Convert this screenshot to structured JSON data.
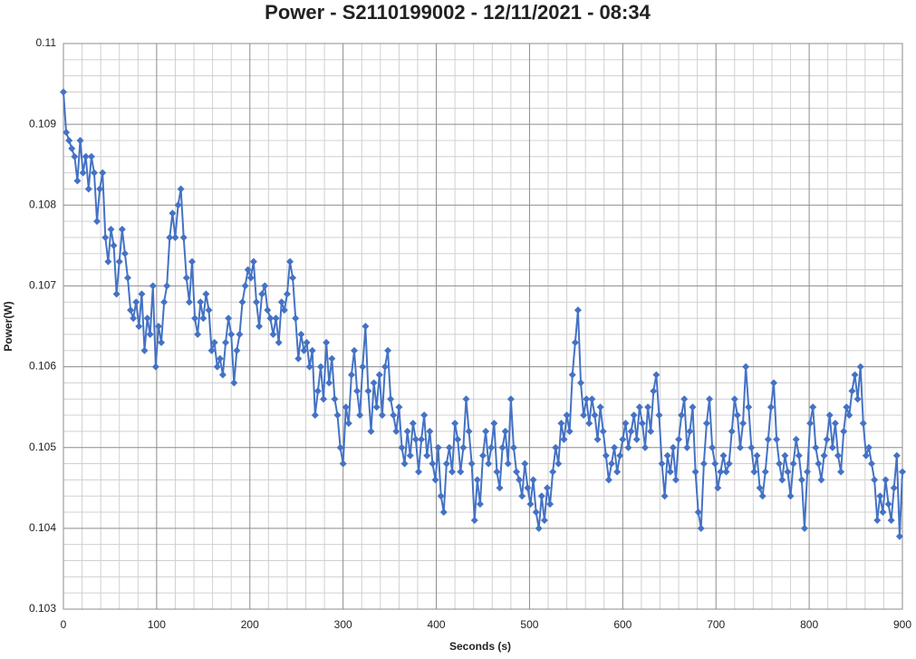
{
  "chart_data": {
    "type": "line",
    "title": "Power - S2110199002 - 12/11/2021 - 08:34",
    "x_label": "Seconds (s)",
    "y_label": "Power(W)",
    "xlim": [
      0,
      900
    ],
    "xticks": [
      0,
      100,
      200,
      300,
      400,
      500,
      600,
      700,
      800,
      900
    ],
    "ylim": [
      0.103,
      0.11
    ],
    "yticks": [
      0.103,
      0.104,
      0.105,
      0.106,
      0.107,
      0.108,
      0.109,
      0.11
    ],
    "grid": true,
    "marker": "diamond",
    "x": [
      0,
      3,
      6,
      9,
      12,
      15,
      18,
      21,
      24,
      27,
      30,
      33,
      36,
      39,
      42,
      45,
      48,
      51,
      54,
      57,
      60,
      63,
      66,
      69,
      72,
      75,
      78,
      81,
      84,
      87,
      90,
      93,
      96,
      99,
      102,
      105,
      108,
      111,
      114,
      117,
      120,
      123,
      126,
      129,
      132,
      135,
      138,
      141,
      144,
      147,
      150,
      153,
      156,
      159,
      162,
      165,
      168,
      171,
      174,
      177,
      180,
      183,
      186,
      189,
      192,
      195,
      198,
      201,
      204,
      207,
      210,
      213,
      216,
      219,
      222,
      225,
      228,
      231,
      234,
      237,
      240,
      243,
      246,
      249,
      252,
      255,
      258,
      261,
      264,
      267,
      270,
      273,
      276,
      279,
      282,
      285,
      288,
      291,
      294,
      297,
      300,
      303,
      306,
      309,
      312,
      315,
      318,
      321,
      324,
      327,
      330,
      333,
      336,
      339,
      342,
      345,
      348,
      351,
      354,
      357,
      360,
      363,
      366,
      369,
      372,
      375,
      378,
      381,
      384,
      387,
      390,
      393,
      396,
      399,
      402,
      405,
      408,
      411,
      414,
      417,
      420,
      423,
      426,
      429,
      432,
      435,
      438,
      441,
      444,
      447,
      450,
      453,
      456,
      459,
      462,
      465,
      468,
      471,
      474,
      477,
      480,
      483,
      486,
      489,
      492,
      495,
      498,
      501,
      504,
      507,
      510,
      513,
      516,
      519,
      522,
      525,
      528,
      531,
      534,
      537,
      540,
      543,
      546,
      549,
      552,
      555,
      558,
      561,
      564,
      567,
      570,
      573,
      576,
      579,
      582,
      585,
      588,
      591,
      594,
      597,
      600,
      603,
      606,
      609,
      612,
      615,
      618,
      621,
      624,
      627,
      630,
      633,
      636,
      639,
      642,
      645,
      648,
      651,
      654,
      657,
      660,
      663,
      666,
      669,
      672,
      675,
      678,
      681,
      684,
      687,
      690,
      693,
      696,
      699,
      702,
      705,
      708,
      711,
      714,
      717,
      720,
      723,
      726,
      729,
      732,
      735,
      738,
      741,
      744,
      747,
      750,
      753,
      756,
      759,
      762,
      765,
      768,
      771,
      774,
      777,
      780,
      783,
      786,
      789,
      792,
      795,
      798,
      801,
      804,
      807,
      810,
      813,
      816,
      819,
      822,
      825,
      828,
      831,
      834,
      837,
      840,
      843,
      846,
      849,
      852,
      855,
      858,
      861,
      864,
      867,
      870,
      873,
      876,
      879,
      882,
      885,
      888,
      891,
      894,
      897,
      900
    ],
    "series": [
      {
        "name": "Power",
        "color": "#4472c4",
        "values": [
          0.1094,
          0.1089,
          0.1088,
          0.1087,
          0.1086,
          0.1083,
          0.1088,
          0.1084,
          0.1086,
          0.1082,
          0.1086,
          0.1084,
          0.1078,
          0.1082,
          0.1084,
          0.1076,
          0.1073,
          0.1077,
          0.1075,
          0.1069,
          0.1073,
          0.1077,
          0.1074,
          0.1071,
          0.1067,
          0.1066,
          0.1068,
          0.1065,
          0.1069,
          0.1062,
          0.1066,
          0.1064,
          0.107,
          0.106,
          0.1065,
          0.1063,
          0.1068,
          0.107,
          0.1076,
          0.1079,
          0.1076,
          0.108,
          0.1082,
          0.1076,
          0.1071,
          0.1068,
          0.1073,
          0.1066,
          0.1064,
          0.1068,
          0.1066,
          0.1069,
          0.1067,
          0.1062,
          0.1063,
          0.106,
          0.1061,
          0.1059,
          0.1063,
          0.1066,
          0.1064,
          0.1058,
          0.1062,
          0.1064,
          0.1068,
          0.107,
          0.1072,
          0.1071,
          0.1073,
          0.1068,
          0.1065,
          0.1069,
          0.107,
          0.1067,
          0.1066,
          0.1064,
          0.1066,
          0.1063,
          0.1068,
          0.1067,
          0.1069,
          0.1073,
          0.1071,
          0.1066,
          0.1061,
          0.1064,
          0.1062,
          0.1063,
          0.106,
          0.1062,
          0.1054,
          0.1057,
          0.106,
          0.1056,
          0.1063,
          0.1058,
          0.1061,
          0.1056,
          0.1054,
          0.105,
          0.1048,
          0.1055,
          0.1053,
          0.1059,
          0.1062,
          0.1057,
          0.1054,
          0.106,
          0.1065,
          0.1057,
          0.1052,
          0.1058,
          0.1055,
          0.1059,
          0.1054,
          0.106,
          0.1062,
          0.1056,
          0.1054,
          0.1052,
          0.1055,
          0.105,
          0.1048,
          0.1052,
          0.1049,
          0.1053,
          0.1051,
          0.1047,
          0.1051,
          0.1054,
          0.1049,
          0.1052,
          0.1048,
          0.1046,
          0.105,
          0.1044,
          0.1042,
          0.1048,
          0.105,
          0.1047,
          0.1053,
          0.1051,
          0.1047,
          0.105,
          0.1056,
          0.1052,
          0.1048,
          0.1041,
          0.1046,
          0.1043,
          0.1049,
          0.1052,
          0.1048,
          0.105,
          0.1053,
          0.1047,
          0.1045,
          0.105,
          0.1052,
          0.1048,
          0.1056,
          0.105,
          0.1047,
          0.1046,
          0.1044,
          0.1048,
          0.1045,
          0.1043,
          0.1046,
          0.1042,
          0.104,
          0.1044,
          0.1041,
          0.1045,
          0.1043,
          0.1047,
          0.105,
          0.1048,
          0.1053,
          0.1051,
          0.1054,
          0.1052,
          0.1059,
          0.1063,
          0.1067,
          0.1058,
          0.1054,
          0.1056,
          0.1053,
          0.1056,
          0.1054,
          0.1051,
          0.1055,
          0.1052,
          0.1049,
          0.1046,
          0.1048,
          0.105,
          0.1047,
          0.1049,
          0.1051,
          0.1053,
          0.105,
          0.1052,
          0.1054,
          0.1051,
          0.1055,
          0.1053,
          0.105,
          0.1055,
          0.1052,
          0.1057,
          0.1059,
          0.1054,
          0.1048,
          0.1044,
          0.1049,
          0.1047,
          0.105,
          0.1046,
          0.1051,
          0.1054,
          0.1056,
          0.105,
          0.1052,
          0.1055,
          0.1047,
          0.1042,
          0.104,
          0.1048,
          0.1053,
          0.1056,
          0.105,
          0.1048,
          0.1045,
          0.1047,
          0.1049,
          0.1047,
          0.1048,
          0.1052,
          0.1056,
          0.1054,
          0.105,
          0.1053,
          0.106,
          0.1055,
          0.105,
          0.1047,
          0.1049,
          0.1045,
          0.1044,
          0.1047,
          0.1051,
          0.1055,
          0.1058,
          0.1051,
          0.1048,
          0.1046,
          0.1049,
          0.1047,
          0.1044,
          0.1048,
          0.1051,
          0.1049,
          0.1046,
          0.104,
          0.1047,
          0.1053,
          0.1055,
          0.105,
          0.1048,
          0.1046,
          0.1049,
          0.1051,
          0.1054,
          0.105,
          0.1053,
          0.1049,
          0.1047,
          0.1052,
          0.1055,
          0.1054,
          0.1057,
          0.1059,
          0.1056,
          0.106,
          0.1053,
          0.1049,
          0.105,
          0.1048,
          0.1046,
          0.1041,
          0.1044,
          0.1042,
          0.1046,
          0.1043,
          0.1041,
          0.1045,
          0.1049,
          0.1039,
          0.1047
        ]
      }
    ]
  }
}
